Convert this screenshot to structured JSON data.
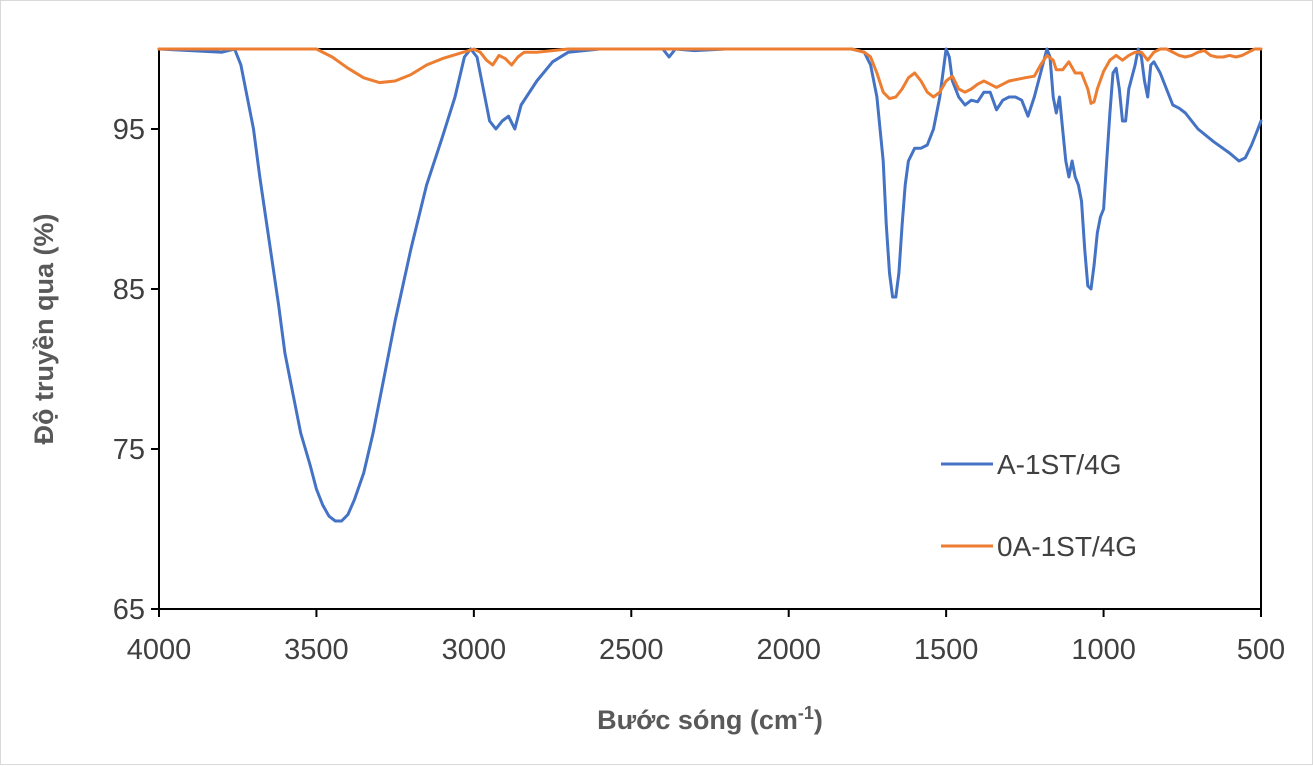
{
  "chart_data": {
    "type": "line",
    "title": "",
    "xlabel": "Bước sóng (cm",
    "xlabel_sup": "-1",
    "xlabel_suffix": ")",
    "ylabel": "Độ truyền qua (%)",
    "xlim": [
      4000,
      500
    ],
    "ylim": [
      65,
      100
    ],
    "x_reversed": true,
    "x_ticks": [
      4000,
      3500,
      3000,
      2500,
      2000,
      1500,
      1000,
      500
    ],
    "y_ticks": [
      65,
      75,
      85,
      95
    ],
    "grid": false,
    "legend_position": "bottom-right",
    "series": [
      {
        "name": "A-1ST/4G",
        "color": "#4472C4",
        "points": [
          [
            4000,
            100.0
          ],
          [
            3900,
            99.9
          ],
          [
            3800,
            99.8
          ],
          [
            3760,
            100.0
          ],
          [
            3740,
            99.0
          ],
          [
            3720,
            97.0
          ],
          [
            3700,
            95.0
          ],
          [
            3680,
            92.0
          ],
          [
            3650,
            88.0
          ],
          [
            3620,
            84.0
          ],
          [
            3600,
            81.0
          ],
          [
            3580,
            79.0
          ],
          [
            3550,
            76.0
          ],
          [
            3520,
            74.0
          ],
          [
            3500,
            72.5
          ],
          [
            3480,
            71.5
          ],
          [
            3460,
            70.8
          ],
          [
            3440,
            70.5
          ],
          [
            3420,
            70.5
          ],
          [
            3400,
            70.9
          ],
          [
            3380,
            71.8
          ],
          [
            3350,
            73.5
          ],
          [
            3320,
            76.0
          ],
          [
            3300,
            78.0
          ],
          [
            3280,
            80.0
          ],
          [
            3250,
            83.0
          ],
          [
            3200,
            87.5
          ],
          [
            3150,
            91.5
          ],
          [
            3100,
            94.5
          ],
          [
            3060,
            97.0
          ],
          [
            3030,
            99.5
          ],
          [
            3010,
            100.0
          ],
          [
            2990,
            99.5
          ],
          [
            2970,
            97.5
          ],
          [
            2950,
            95.5
          ],
          [
            2930,
            95.0
          ],
          [
            2910,
            95.5
          ],
          [
            2890,
            95.8
          ],
          [
            2870,
            95.0
          ],
          [
            2850,
            96.5
          ],
          [
            2800,
            98.0
          ],
          [
            2750,
            99.2
          ],
          [
            2700,
            99.8
          ],
          [
            2600,
            100.0
          ],
          [
            2500,
            100.0
          ],
          [
            2400,
            100.0
          ],
          [
            2380,
            99.5
          ],
          [
            2360,
            100.0
          ],
          [
            2300,
            99.9
          ],
          [
            2200,
            100.0
          ],
          [
            2000,
            100.0
          ],
          [
            1800,
            100.0
          ],
          [
            1760,
            99.8
          ],
          [
            1740,
            99.0
          ],
          [
            1720,
            97.0
          ],
          [
            1700,
            93.0
          ],
          [
            1690,
            89.0
          ],
          [
            1680,
            86.0
          ],
          [
            1670,
            84.5
          ],
          [
            1660,
            84.5
          ],
          [
            1650,
            86.0
          ],
          [
            1640,
            89.0
          ],
          [
            1630,
            91.5
          ],
          [
            1620,
            93.0
          ],
          [
            1600,
            93.8
          ],
          [
            1580,
            93.8
          ],
          [
            1560,
            94.0
          ],
          [
            1540,
            95.0
          ],
          [
            1520,
            97.0
          ],
          [
            1500,
            100.0
          ],
          [
            1490,
            99.5
          ],
          [
            1480,
            98.0
          ],
          [
            1460,
            97.0
          ],
          [
            1440,
            96.5
          ],
          [
            1420,
            96.8
          ],
          [
            1400,
            96.7
          ],
          [
            1380,
            97.3
          ],
          [
            1360,
            97.3
          ],
          [
            1340,
            96.2
          ],
          [
            1320,
            96.8
          ],
          [
            1300,
            97.0
          ],
          [
            1280,
            97.0
          ],
          [
            1260,
            96.8
          ],
          [
            1240,
            95.8
          ],
          [
            1220,
            97.0
          ],
          [
            1200,
            98.5
          ],
          [
            1180,
            100.0
          ],
          [
            1170,
            99.5
          ],
          [
            1160,
            97.0
          ],
          [
            1150,
            96.0
          ],
          [
            1140,
            97.0
          ],
          [
            1130,
            95.0
          ],
          [
            1120,
            93.0
          ],
          [
            1110,
            92.0
          ],
          [
            1100,
            93.0
          ],
          [
            1090,
            92.0
          ],
          [
            1080,
            91.5
          ],
          [
            1070,
            90.5
          ],
          [
            1060,
            87.5
          ],
          [
            1050,
            85.2
          ],
          [
            1040,
            85.0
          ],
          [
            1030,
            86.5
          ],
          [
            1020,
            88.5
          ],
          [
            1010,
            89.5
          ],
          [
            1000,
            90.0
          ],
          [
            990,
            93.0
          ],
          [
            980,
            96.0
          ],
          [
            970,
            98.5
          ],
          [
            960,
            98.8
          ],
          [
            950,
            97.5
          ],
          [
            940,
            95.5
          ],
          [
            930,
            95.5
          ],
          [
            920,
            97.5
          ],
          [
            900,
            99.0
          ],
          [
            890,
            100.0
          ],
          [
            880,
            99.5
          ],
          [
            870,
            98.0
          ],
          [
            860,
            97.0
          ],
          [
            850,
            99.0
          ],
          [
            840,
            99.2
          ],
          [
            820,
            98.5
          ],
          [
            800,
            97.5
          ],
          [
            780,
            96.5
          ],
          [
            760,
            96.3
          ],
          [
            740,
            96.0
          ],
          [
            700,
            95.0
          ],
          [
            650,
            94.2
          ],
          [
            600,
            93.5
          ],
          [
            570,
            93.0
          ],
          [
            550,
            93.2
          ],
          [
            530,
            94.0
          ],
          [
            510,
            95.0
          ],
          [
            500,
            95.5
          ]
        ]
      },
      {
        "name": "0A-1ST/4G",
        "color": "#ED7D31",
        "points": [
          [
            4000,
            100.0
          ],
          [
            3700,
            100.0
          ],
          [
            3500,
            100.0
          ],
          [
            3450,
            99.5
          ],
          [
            3400,
            98.8
          ],
          [
            3350,
            98.2
          ],
          [
            3300,
            97.9
          ],
          [
            3250,
            98.0
          ],
          [
            3200,
            98.4
          ],
          [
            3150,
            99.0
          ],
          [
            3100,
            99.4
          ],
          [
            3050,
            99.7
          ],
          [
            3000,
            100.0
          ],
          [
            2980,
            99.8
          ],
          [
            2960,
            99.3
          ],
          [
            2940,
            99.0
          ],
          [
            2920,
            99.6
          ],
          [
            2900,
            99.4
          ],
          [
            2880,
            99.0
          ],
          [
            2860,
            99.5
          ],
          [
            2840,
            99.8
          ],
          [
            2800,
            99.8
          ],
          [
            2700,
            100.0
          ],
          [
            2500,
            100.0
          ],
          [
            2000,
            100.0
          ],
          [
            1800,
            100.0
          ],
          [
            1760,
            99.8
          ],
          [
            1740,
            99.5
          ],
          [
            1720,
            98.5
          ],
          [
            1700,
            97.3
          ],
          [
            1680,
            96.9
          ],
          [
            1660,
            97.0
          ],
          [
            1640,
            97.5
          ],
          [
            1620,
            98.2
          ],
          [
            1600,
            98.5
          ],
          [
            1580,
            98.0
          ],
          [
            1560,
            97.3
          ],
          [
            1540,
            97.0
          ],
          [
            1520,
            97.3
          ],
          [
            1500,
            98.0
          ],
          [
            1480,
            98.3
          ],
          [
            1460,
            97.5
          ],
          [
            1440,
            97.3
          ],
          [
            1420,
            97.5
          ],
          [
            1400,
            97.8
          ],
          [
            1380,
            98.0
          ],
          [
            1360,
            97.8
          ],
          [
            1340,
            97.6
          ],
          [
            1320,
            97.8
          ],
          [
            1300,
            98.0
          ],
          [
            1250,
            98.2
          ],
          [
            1220,
            98.3
          ],
          [
            1200,
            99.0
          ],
          [
            1180,
            99.6
          ],
          [
            1160,
            99.3
          ],
          [
            1150,
            98.7
          ],
          [
            1130,
            98.7
          ],
          [
            1110,
            99.2
          ],
          [
            1090,
            98.5
          ],
          [
            1070,
            98.5
          ],
          [
            1050,
            97.5
          ],
          [
            1040,
            96.6
          ],
          [
            1030,
            96.7
          ],
          [
            1020,
            97.5
          ],
          [
            1000,
            98.6
          ],
          [
            980,
            99.3
          ],
          [
            960,
            99.6
          ],
          [
            940,
            99.3
          ],
          [
            920,
            99.6
          ],
          [
            900,
            99.8
          ],
          [
            880,
            99.8
          ],
          [
            860,
            99.3
          ],
          [
            840,
            99.8
          ],
          [
            820,
            100.0
          ],
          [
            800,
            100.0
          ],
          [
            780,
            99.8
          ],
          [
            760,
            99.6
          ],
          [
            740,
            99.5
          ],
          [
            720,
            99.6
          ],
          [
            700,
            99.8
          ],
          [
            680,
            99.9
          ],
          [
            660,
            99.6
          ],
          [
            640,
            99.5
          ],
          [
            620,
            99.5
          ],
          [
            600,
            99.6
          ],
          [
            580,
            99.5
          ],
          [
            560,
            99.6
          ],
          [
            540,
            99.8
          ],
          [
            520,
            100.0
          ],
          [
            500,
            100.0
          ]
        ]
      }
    ]
  }
}
